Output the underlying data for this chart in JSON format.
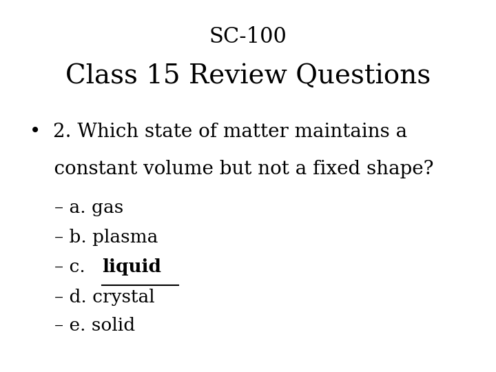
{
  "background_color": "#ffffff",
  "title_line1": "SC-100",
  "title_line2": "Class 15 Review Questions",
  "title_line1_fontsize": 22,
  "title_line2_fontsize": 28,
  "bullet_text_line1": "•  2. Which state of matter maintains a",
  "bullet_text_line2": "    constant volume but not a fixed shape?",
  "bullet_fontsize": 20,
  "options": [
    {
      "prefix": "– a. gas",
      "suffix": "",
      "bold_suffix": false
    },
    {
      "prefix": "– b. plasma",
      "suffix": "",
      "bold_suffix": false
    },
    {
      "prefix": "– c. ",
      "suffix": "liquid",
      "bold_suffix": true
    },
    {
      "prefix": "– d. crystal",
      "suffix": "",
      "bold_suffix": false
    },
    {
      "prefix": "– e. solid",
      "suffix": "",
      "bold_suffix": false
    }
  ],
  "options_fontsize": 19,
  "font_family": "DejaVu Serif",
  "text_color": "#000000"
}
